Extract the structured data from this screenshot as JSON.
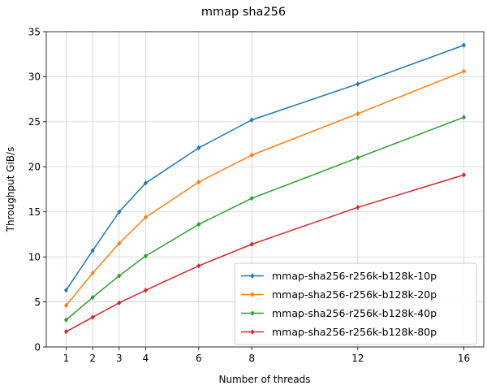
{
  "chart_data": {
    "type": "line",
    "title": "mmap sha256",
    "xlabel": "Number of threads",
    "ylabel": "Throughput GiB/s",
    "x": [
      1,
      2,
      3,
      4,
      6,
      8,
      12,
      16
    ],
    "x_ticks": [
      "1",
      "2",
      "3",
      "4",
      "6",
      "8",
      "12",
      "16"
    ],
    "y_ticks": [
      "0",
      "5",
      "10",
      "15",
      "20",
      "25",
      "30",
      "35"
    ],
    "xlim": [
      0.25,
      16.75
    ],
    "ylim": [
      0,
      35
    ],
    "grid": true,
    "legend_position": "lower-right",
    "marker": "diamond",
    "series": [
      {
        "name": "mmap-sha256-r256k-b128k-10p",
        "color": "#1f77b4",
        "values": [
          6.3,
          10.7,
          15.0,
          18.2,
          22.1,
          25.2,
          29.2,
          33.5
        ]
      },
      {
        "name": "mmap-sha256-r256k-b128k-20p",
        "color": "#ff7f0e",
        "values": [
          4.6,
          8.2,
          11.5,
          14.4,
          18.3,
          21.3,
          25.9,
          30.6
        ]
      },
      {
        "name": "mmap-sha256-r256k-b128k-40p",
        "color": "#2ca02c",
        "values": [
          3.0,
          5.5,
          7.9,
          10.1,
          13.6,
          16.5,
          21.0,
          25.5
        ]
      },
      {
        "name": "mmap-sha256-r256k-b128k-80p",
        "color": "#d62728",
        "values": [
          1.7,
          3.3,
          4.9,
          6.3,
          9.0,
          11.4,
          15.5,
          19.1
        ]
      }
    ]
  }
}
